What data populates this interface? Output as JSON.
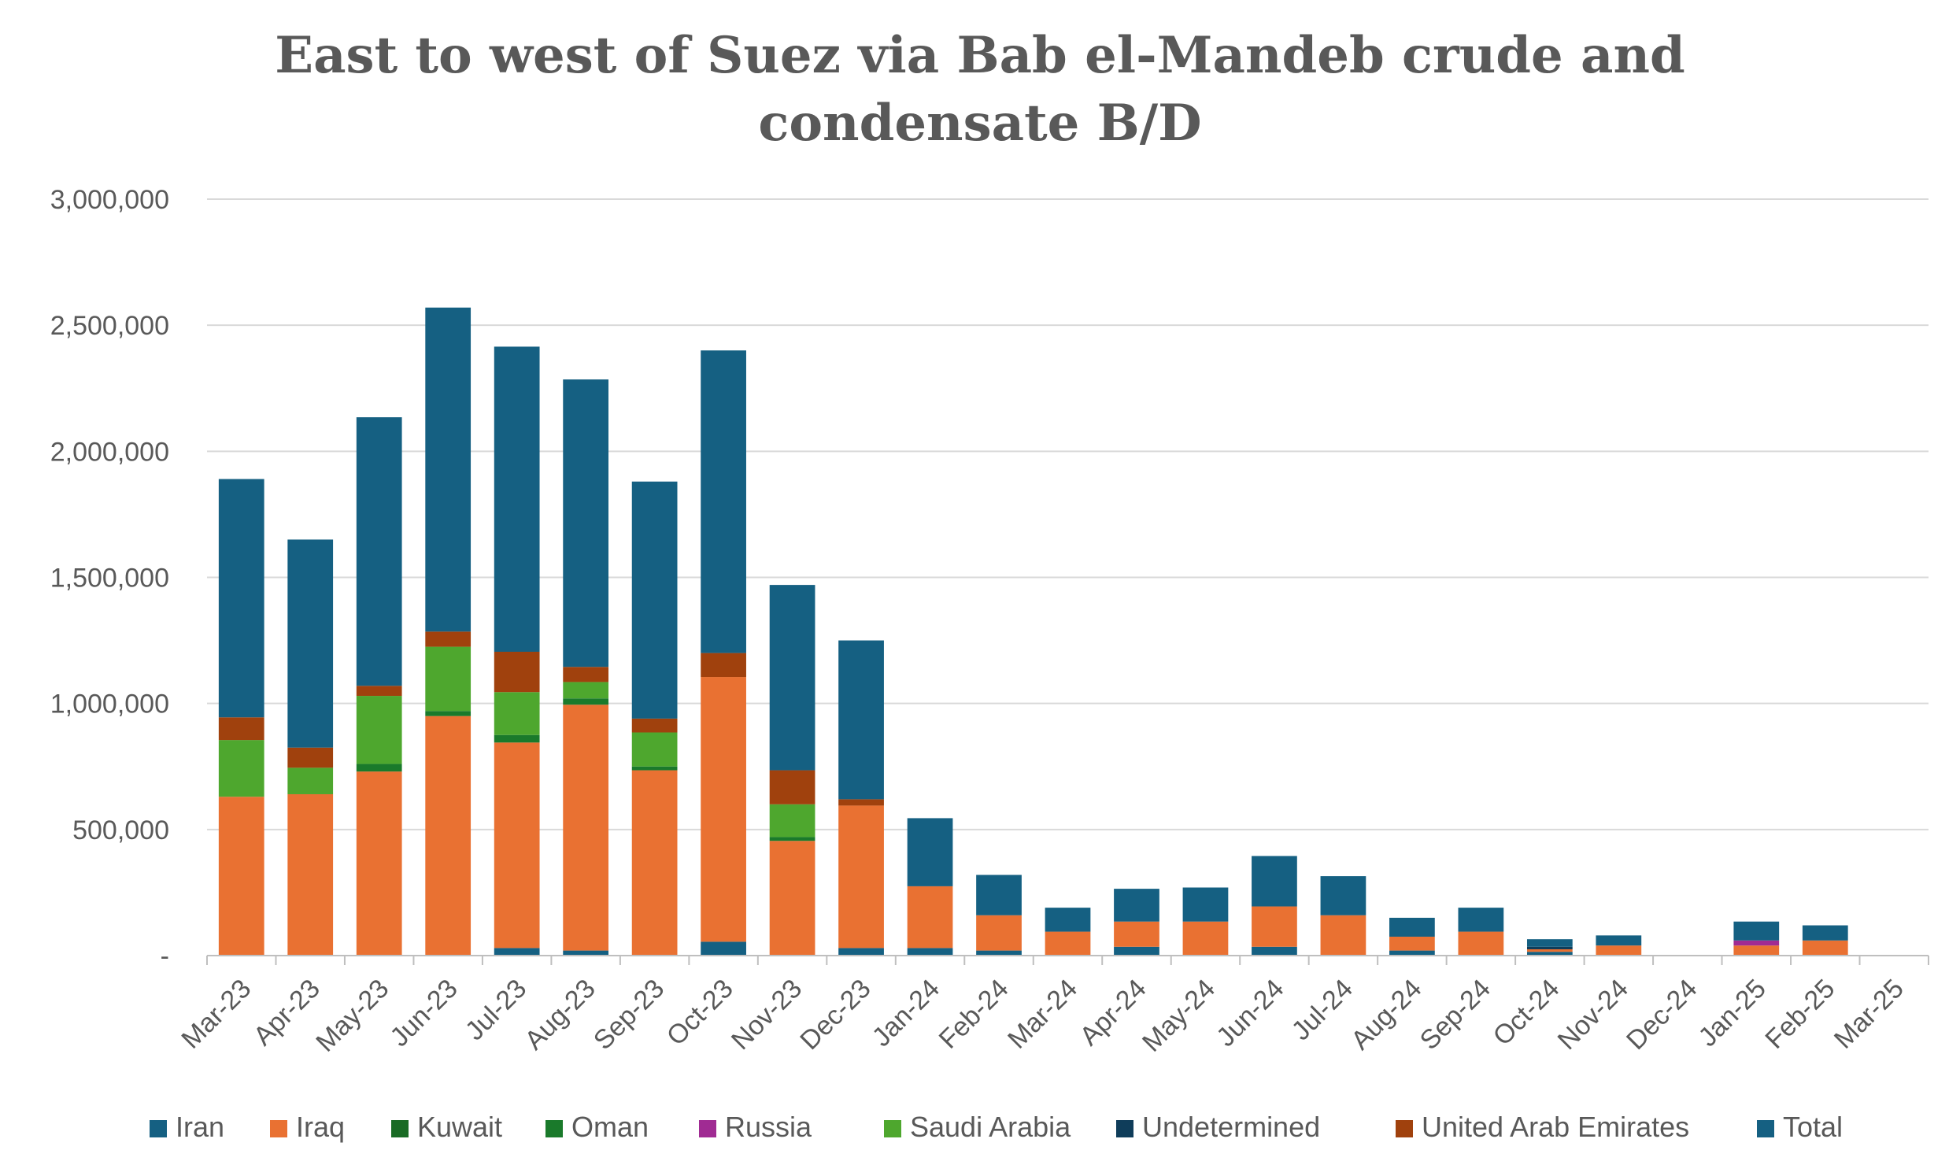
{
  "chart_data": {
    "type": "bar",
    "stacked": true,
    "title": "East to west of Suez via Bab el-Mandeb crude and condensate B/D",
    "title_lines": [
      "East to west of Suez via Bab el-Mandeb crude and",
      "condensate B/D"
    ],
    "xlabel": "",
    "ylabel": "",
    "ylim": [
      0,
      3000000
    ],
    "yticks": [
      0,
      500000,
      1000000,
      1500000,
      2000000,
      2500000,
      3000000
    ],
    "ytick_labels": [
      "-",
      "500,000",
      "1,000,000",
      "1,500,000",
      "2,000,000",
      "2,500,000",
      "3,000,000"
    ],
    "grid": true,
    "legend_position": "bottom",
    "categories": [
      "Mar-23",
      "Apr-23",
      "May-23",
      "Jun-23",
      "Jul-23",
      "Aug-23",
      "Sep-23",
      "Oct-23",
      "Nov-23",
      "Dec-23",
      "Jan-24",
      "Feb-24",
      "Mar-24",
      "Apr-24",
      "May-24",
      "Jun-24",
      "Jul-24",
      "Aug-24",
      "Sep-24",
      "Oct-24",
      "Nov-24",
      "Dec-24",
      "Jan-25",
      "Feb-25",
      "Mar-25"
    ],
    "series": [
      {
        "name": "Total",
        "color": "#156082",
        "values": [
          0,
          0,
          0,
          0,
          30000,
          20000,
          0,
          55000,
          0,
          30000,
          30000,
          20000,
          0,
          35000,
          0,
          35000,
          0,
          20000,
          0,
          15000,
          0,
          0,
          0,
          0,
          0
        ]
      },
      {
        "name": "Iraq",
        "color": "#E97132",
        "values": [
          630000,
          640000,
          730000,
          950000,
          815000,
          975000,
          735000,
          1050000,
          455000,
          565000,
          245000,
          140000,
          95000,
          100000,
          135000,
          160000,
          160000,
          55000,
          95000,
          10000,
          40000,
          0,
          40000,
          60000,
          0
        ]
      },
      {
        "name": "Kuwait",
        "color": "#196B24",
        "values": [
          0,
          0,
          0,
          0,
          0,
          0,
          0,
          0,
          0,
          0,
          0,
          0,
          0,
          0,
          0,
          0,
          0,
          0,
          0,
          0,
          0,
          0,
          0,
          0,
          0
        ]
      },
      {
        "name": "Oman",
        "color": "#1A7A2B",
        "values": [
          0,
          0,
          30000,
          20000,
          30000,
          25000,
          15000,
          0,
          15000,
          0,
          0,
          0,
          0,
          0,
          0,
          0,
          0,
          0,
          0,
          0,
          0,
          0,
          0,
          0,
          0
        ]
      },
      {
        "name": "Russia",
        "color": "#A02B93",
        "values": [
          0,
          0,
          0,
          0,
          0,
          0,
          0,
          0,
          0,
          0,
          0,
          0,
          0,
          0,
          0,
          0,
          0,
          0,
          0,
          0,
          0,
          0,
          20000,
          0,
          0
        ]
      },
      {
        "name": "Saudi Arabia",
        "color": "#4EA72E",
        "values": [
          225000,
          105000,
          270000,
          255000,
          170000,
          65000,
          135000,
          0,
          130000,
          0,
          0,
          0,
          0,
          0,
          0,
          0,
          0,
          0,
          0,
          0,
          0,
          0,
          0,
          0,
          0
        ]
      },
      {
        "name": "Undetermined",
        "color": "#0F3D5A",
        "values": [
          0,
          0,
          0,
          0,
          0,
          0,
          0,
          0,
          0,
          0,
          0,
          0,
          0,
          0,
          0,
          0,
          0,
          0,
          0,
          10000,
          0,
          0,
          0,
          0,
          0
        ]
      },
      {
        "name": "United Arab Emirates",
        "color": "#A0410D",
        "values": [
          90000,
          80000,
          40000,
          60000,
          160000,
          60000,
          55000,
          95000,
          135000,
          25000,
          0,
          0,
          0,
          0,
          0,
          0,
          0,
          0,
          0,
          0,
          0,
          0,
          0,
          0,
          0
        ]
      },
      {
        "name": "Iran",
        "color": "#156082",
        "values": [
          945000,
          825000,
          1065000,
          1285000,
          1210000,
          1140000,
          940000,
          1200000,
          735000,
          630000,
          270000,
          160000,
          95000,
          130000,
          135000,
          200000,
          155000,
          75000,
          95000,
          30000,
          40000,
          0,
          75000,
          60000,
          0
        ]
      }
    ],
    "legend": [
      {
        "name": "Iran",
        "color": "#156082"
      },
      {
        "name": "Iraq",
        "color": "#E97132"
      },
      {
        "name": "Kuwait",
        "color": "#196B24"
      },
      {
        "name": "Oman",
        "color": "#1A7A2B"
      },
      {
        "name": "Russia",
        "color": "#A02B93"
      },
      {
        "name": "Saudi Arabia",
        "color": "#4EA72E"
      },
      {
        "name": "Undetermined",
        "color": "#0F3D5A"
      },
      {
        "name": "United Arab Emirates",
        "color": "#A0410D"
      },
      {
        "name": "Total",
        "color": "#156082"
      }
    ]
  },
  "colors": {
    "gridline": "#D9D9D9",
    "axis": "#BFBFBF",
    "text": "#595959"
  }
}
